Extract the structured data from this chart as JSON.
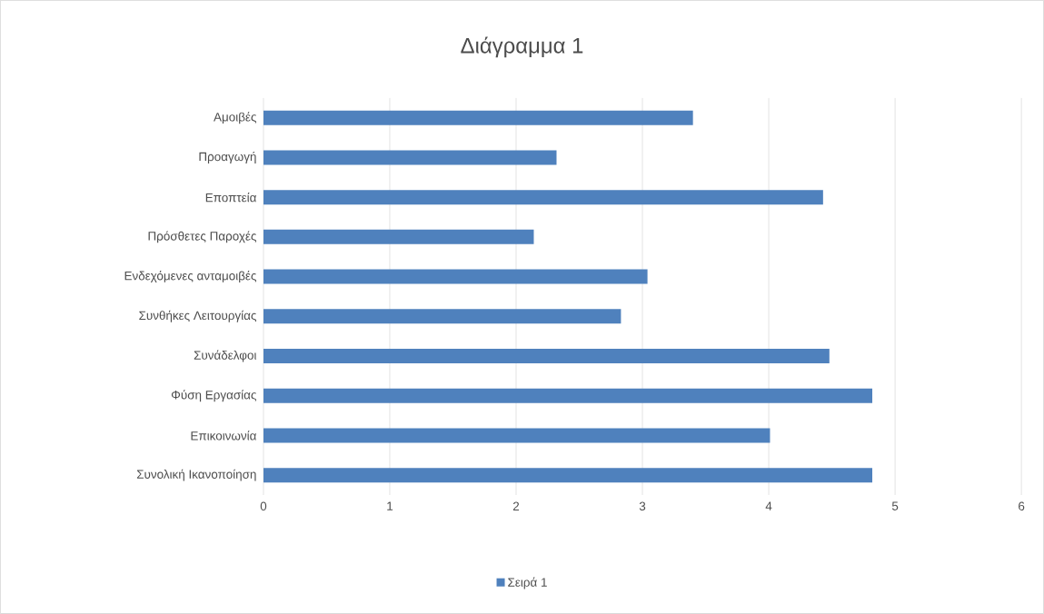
{
  "chart_data": {
    "type": "bar",
    "orientation": "horizontal",
    "title": "Διάγραμμα 1",
    "categories": [
      "Αμοιβές",
      "Προαγωγή",
      "Εποπτεία",
      "Πρόσθετες Παροχές",
      "Ενδεχόμενες ανταμοιβές",
      "Συνθήκες Λειτουργίας",
      "Συνάδελφοι",
      "Φύση Εργασίας",
      "Επικοινωνία",
      "Συνολική Ικανοποίηση"
    ],
    "series": [
      {
        "name": "Σειρά 1",
        "color": "#4f81bd",
        "values": [
          3.4,
          2.32,
          4.43,
          2.14,
          3.04,
          2.83,
          4.48,
          4.82,
          4.01,
          4.82
        ]
      }
    ],
    "xlim": [
      0,
      6
    ],
    "xticks": [
      0,
      1,
      2,
      3,
      4,
      5,
      6
    ],
    "grid": "x",
    "legend": "bottom"
  }
}
